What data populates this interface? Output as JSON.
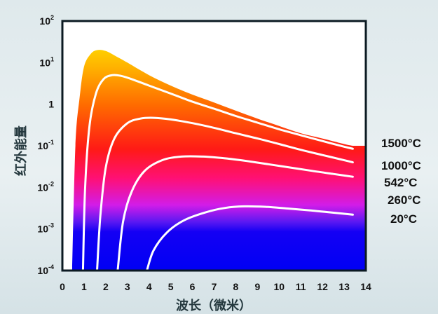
{
  "chart_data": {
    "type": "area",
    "title": "",
    "xlabel": "波长（微米）",
    "ylabel": "红外能量",
    "x_ticks": [
      "0",
      "1",
      "2",
      "3",
      "4",
      "5",
      "6",
      "7",
      "8",
      "9",
      "10",
      "11",
      "12",
      "13",
      "14"
    ],
    "y_ticks": [
      {
        "base": "10",
        "exp": "-4"
      },
      {
        "base": "10",
        "exp": "-3"
      },
      {
        "base": "10",
        "exp": "-2"
      },
      {
        "base": "10",
        "exp": "-1"
      },
      {
        "base": "1",
        "exp": ""
      },
      {
        "base": "10",
        "exp": "1"
      },
      {
        "base": "10",
        "exp": "2"
      }
    ],
    "xlim": [
      0,
      14
    ],
    "ylim": [
      0.0001,
      100
    ],
    "yscale": "log",
    "grid": false,
    "series": [
      {
        "name": "1500°C",
        "points": [
          [
            0.45,
            0.0001
          ],
          [
            0.6,
            0.1
          ],
          [
            0.8,
            1.5
          ],
          [
            1.0,
            8
          ],
          [
            1.3,
            16
          ],
          [
            1.6,
            20
          ],
          [
            2.0,
            19
          ],
          [
            2.5,
            14
          ],
          [
            3,
            10
          ],
          [
            4,
            5
          ],
          [
            5,
            2.8
          ],
          [
            6,
            1.7
          ],
          [
            7,
            1.1
          ],
          [
            8,
            0.7
          ],
          [
            9,
            0.45
          ],
          [
            10,
            0.3
          ],
          [
            11,
            0.2
          ],
          [
            12,
            0.15
          ],
          [
            13,
            0.11
          ],
          [
            13.4,
            0.1
          ]
        ]
      },
      {
        "name": "1000°C",
        "points": [
          [
            0.95,
            0.0001
          ],
          [
            1.05,
            0.01
          ],
          [
            1.25,
            0.3
          ],
          [
            1.55,
            1.8
          ],
          [
            1.9,
            4
          ],
          [
            2.3,
            5
          ],
          [
            2.7,
            4.8
          ],
          [
            3.2,
            4
          ],
          [
            4,
            2.8
          ],
          [
            5,
            1.8
          ],
          [
            6,
            1.15
          ],
          [
            7,
            0.78
          ],
          [
            8,
            0.52
          ],
          [
            9,
            0.36
          ],
          [
            10,
            0.25
          ],
          [
            11,
            0.18
          ],
          [
            12,
            0.13
          ],
          [
            13,
            0.095
          ],
          [
            13.4,
            0.085
          ]
        ]
      },
      {
        "name": "542°C",
        "points": [
          [
            1.6,
            0.0001
          ],
          [
            1.75,
            0.002
          ],
          [
            2.0,
            0.03
          ],
          [
            2.4,
            0.15
          ],
          [
            3,
            0.35
          ],
          [
            3.6,
            0.45
          ],
          [
            4.2,
            0.47
          ],
          [
            5,
            0.43
          ],
          [
            6,
            0.35
          ],
          [
            7,
            0.27
          ],
          [
            8,
            0.2
          ],
          [
            9,
            0.15
          ],
          [
            10,
            0.11
          ],
          [
            11,
            0.08
          ],
          [
            12,
            0.06
          ],
          [
            13,
            0.045
          ],
          [
            13.4,
            0.04
          ]
        ]
      },
      {
        "name": "260°C",
        "points": [
          [
            2.55,
            0.0001
          ],
          [
            2.8,
            0.0015
          ],
          [
            3.2,
            0.008
          ],
          [
            3.8,
            0.025
          ],
          [
            4.6,
            0.045
          ],
          [
            5.5,
            0.055
          ],
          [
            6.5,
            0.055
          ],
          [
            7.5,
            0.05
          ],
          [
            8.5,
            0.043
          ],
          [
            9.5,
            0.036
          ],
          [
            10.5,
            0.03
          ],
          [
            11.5,
            0.025
          ],
          [
            12.5,
            0.021
          ],
          [
            13.4,
            0.018
          ]
        ]
      },
      {
        "name": "20°C",
        "points": [
          [
            3.9,
            0.0001
          ],
          [
            4.2,
            0.0003
          ],
          [
            4.8,
            0.0008
          ],
          [
            5.6,
            0.0016
          ],
          [
            6.6,
            0.0025
          ],
          [
            7.5,
            0.0032
          ],
          [
            8.4,
            0.0035
          ],
          [
            9.4,
            0.0034
          ],
          [
            10.4,
            0.0031
          ],
          [
            11.4,
            0.0028
          ],
          [
            12.4,
            0.0025
          ],
          [
            13.4,
            0.0022
          ]
        ]
      }
    ]
  }
}
